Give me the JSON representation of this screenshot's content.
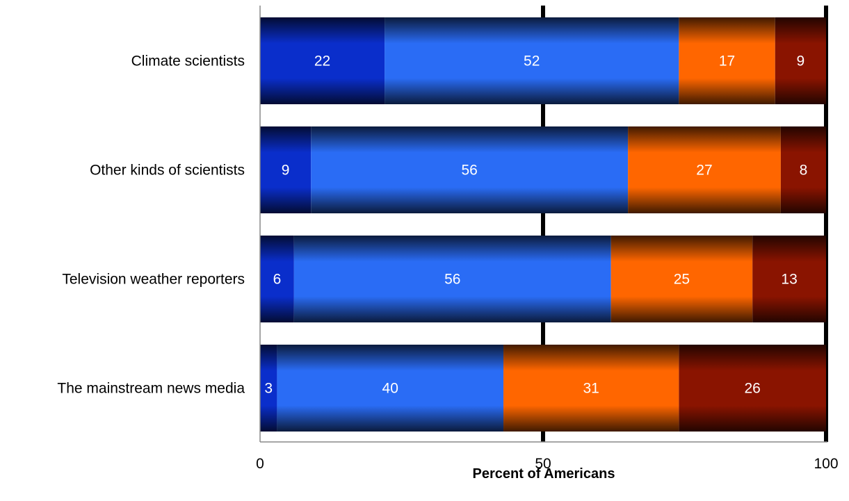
{
  "chart_data": {
    "type": "bar",
    "orientation": "horizontal",
    "stacked": true,
    "categories": [
      "Climate scientists",
      "Other kinds of scientists",
      "Television weather reporters",
      "The mainstream news media"
    ],
    "series": [
      {
        "values": [
          22,
          9,
          6,
          3
        ],
        "color": "#0a2ecb"
      },
      {
        "values": [
          52,
          56,
          56,
          40
        ],
        "color": "#2a6cf5"
      },
      {
        "values": [
          17,
          27,
          25,
          31
        ],
        "color": "#ff6600"
      },
      {
        "values": [
          9,
          8,
          13,
          26
        ],
        "color": "#8a1400"
      }
    ],
    "xlabel": "Percent of Americans",
    "ylabel": "",
    "xlim": [
      0,
      100
    ],
    "x_ticks": [
      0,
      50,
      100
    ],
    "gridlines": [
      50,
      100
    ],
    "legend": "none"
  }
}
